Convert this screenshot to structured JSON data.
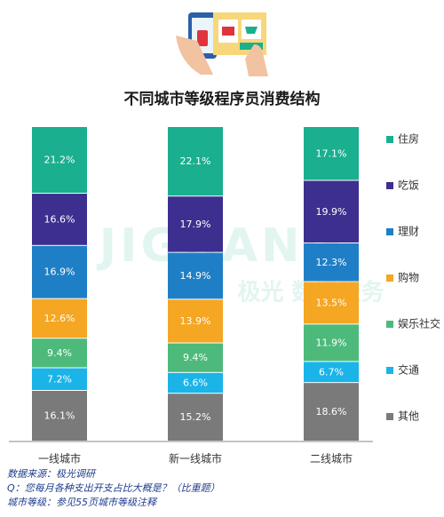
{
  "chart_data": {
    "type": "stacked_bar",
    "title": "不同城市等级程序员消费结构",
    "categories": [
      "一线城市",
      "新一线城市",
      "二线城市"
    ],
    "series": [
      {
        "name": "住房",
        "color": "#1aaf8e",
        "values": [
          21.2,
          22.1,
          17.1
        ],
        "value_labels": [
          "21.2%",
          "22.1%",
          "17.1%"
        ]
      },
      {
        "name": "吃饭",
        "color": "#3d2f8f",
        "values": [
          16.6,
          17.9,
          19.9
        ],
        "value_labels": [
          "16.6%",
          "17.9%",
          "19.9%"
        ]
      },
      {
        "name": "理财",
        "color": "#1f7fc6",
        "values": [
          16.9,
          14.9,
          12.3
        ],
        "value_labels": [
          "16.9%",
          "14.9%",
          "12.3%"
        ]
      },
      {
        "name": "购物",
        "color": "#f5a623",
        "values": [
          12.6,
          13.9,
          13.5
        ],
        "value_labels": [
          "12.6%",
          "13.9%",
          "13.5%"
        ]
      },
      {
        "name": "娱乐社交",
        "color": "#4dba7b",
        "values": [
          9.4,
          9.4,
          11.9
        ],
        "value_labels": [
          "9.4%",
          "9.4%",
          "11.9%"
        ]
      },
      {
        "name": "交通",
        "color": "#1ab4e8",
        "values": [
          7.2,
          6.6,
          6.7
        ],
        "value_labels": [
          "7.2%",
          "6.6%",
          "6.7%"
        ]
      },
      {
        "name": "其他",
        "color": "#7a7a7a",
        "values": [
          16.1,
          15.2,
          18.6
        ],
        "value_labels": [
          "16.1%",
          "15.2%",
          "18.6%"
        ]
      }
    ],
    "legend": "right",
    "watermark": [
      "JIGUANG",
      "极光 数据服务"
    ],
    "notes": [
      "数据来源：极光调研",
      "Q：您每月各种支出开支占比大概是？（比重题）",
      "城市等级：参见55页城市等级注释"
    ]
  }
}
